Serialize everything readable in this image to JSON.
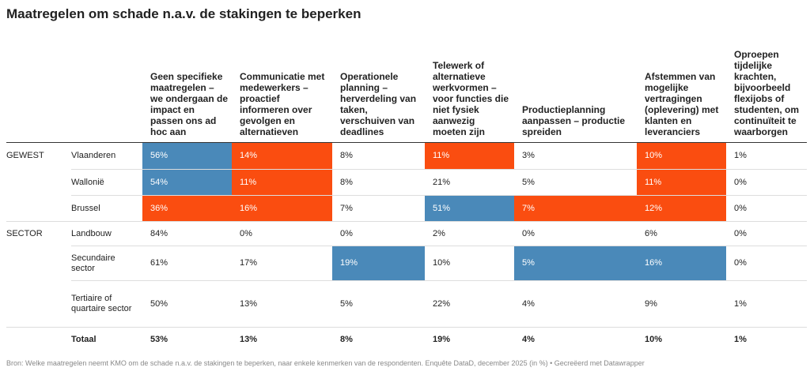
{
  "title": "Maatregelen om schade n.a.v. de stakingen te beperken",
  "colors": {
    "blue": "#4a89b9",
    "orange": "#fa4d10"
  },
  "table": {
    "columns": [
      "Geen specifieke maatregelen – we ondergaan de impact en passen ons ad hoc aan",
      "Communicatie met medewerkers – proactief informeren over gevolgen en alternatieven",
      "Operationele planning – herverdeling van taken, verschuiven van deadlines",
      "Telewerk of alternatieve werkvormen – voor functies die niet fysiek aanwezig moeten zijn",
      "Productieplanning aanpassen – productie spreiden",
      "Afstemmen van mogelijke vertragingen (oplevering) met klanten en leveranciers",
      "Oproepen tijdelijke krachten, bijvoorbeeld flexijobs of studenten, om continuïteit te waarborgen"
    ],
    "groups": [
      {
        "label": "GEWEST",
        "rows": [
          {
            "label": "Vlaanderen",
            "cells": [
              "56%",
              "14%",
              "8%",
              "11%",
              "3%",
              "10%",
              "1%"
            ],
            "fills": [
              "blue",
              "orange",
              null,
              "orange",
              null,
              "orange",
              null
            ]
          },
          {
            "label": "Wallonië",
            "cells": [
              "54%",
              "11%",
              "8%",
              "21%",
              "5%",
              "11%",
              "0%"
            ],
            "fills": [
              "blue",
              "orange",
              null,
              null,
              null,
              "orange",
              null
            ]
          },
          {
            "label": "Brussel",
            "cells": [
              "36%",
              "16%",
              "7%",
              "51%",
              "7%",
              "12%",
              "0%"
            ],
            "fills": [
              "orange",
              "orange",
              null,
              "blue",
              "orange",
              "orange",
              null
            ]
          }
        ]
      },
      {
        "label": "SECTOR",
        "rows": [
          {
            "label": "Landbouw",
            "cells": [
              "84%",
              "0%",
              "0%",
              "2%",
              "0%",
              "6%",
              "0%"
            ],
            "fills": [
              null,
              null,
              null,
              null,
              null,
              null,
              null
            ]
          },
          {
            "label": "Secundaire sector",
            "cells": [
              "61%",
              "17%",
              "19%",
              "10%",
              "5%",
              "16%",
              "0%"
            ],
            "fills": [
              null,
              null,
              "blue",
              null,
              "blue",
              "blue",
              null
            ]
          },
          {
            "label": "Tertiaire of quartaire sector",
            "cells": [
              "50%",
              "13%",
              "5%",
              "22%",
              "4%",
              "9%",
              "1%"
            ],
            "fills": [
              null,
              null,
              null,
              null,
              null,
              null,
              null
            ]
          }
        ]
      }
    ],
    "total": {
      "label": "Totaal",
      "cells": [
        "53%",
        "13%",
        "8%",
        "19%",
        "4%",
        "10%",
        "1%"
      ]
    }
  },
  "footer": {
    "source": "Bron: Welke maatregelen neemt KMO om de schade n.a.v. de stakingen te beperken, naar enkele kenmerken van de respondenten. Enquête DataD, december 2025 (in %)",
    "credit": "• Gecreëerd met Datawrapper"
  }
}
